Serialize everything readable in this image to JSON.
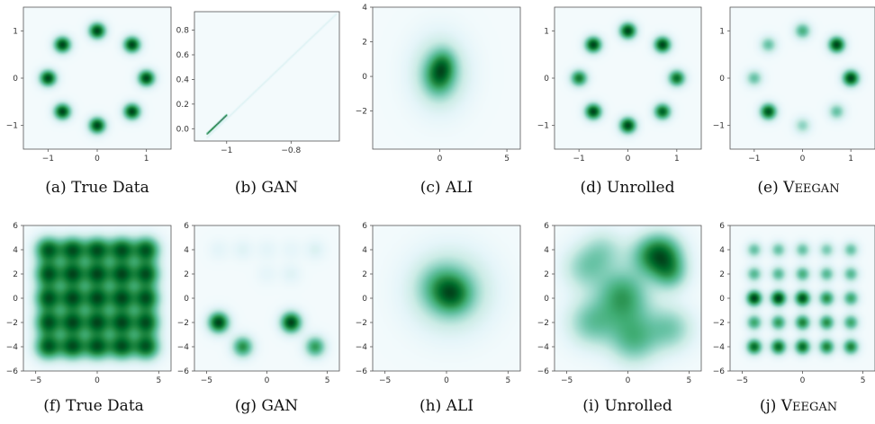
{
  "chart_data": [
    {
      "type": "heatmap",
      "caption_prefix": "(a)",
      "caption_name": "True Data",
      "small_caps": false,
      "colormap": "BuGn",
      "xlim": [
        -1.5,
        1.5
      ],
      "ylim": [
        -1.5,
        1.5
      ],
      "xticks": [
        -1,
        0,
        1
      ],
      "yticks": [
        -1,
        0,
        1
      ],
      "components": [
        {
          "x": 1.0,
          "y": 0.0,
          "s": 0.12,
          "w": 1
        },
        {
          "x": 0.707,
          "y": 0.707,
          "s": 0.12,
          "w": 1
        },
        {
          "x": 0.0,
          "y": 1.0,
          "s": 0.12,
          "w": 1
        },
        {
          "x": -0.707,
          "y": 0.707,
          "s": 0.12,
          "w": 1
        },
        {
          "x": -1.0,
          "y": 0.0,
          "s": 0.12,
          "w": 1
        },
        {
          "x": -0.707,
          "y": -0.707,
          "s": 0.12,
          "w": 1
        },
        {
          "x": 0.0,
          "y": -1.0,
          "s": 0.12,
          "w": 1
        },
        {
          "x": 0.707,
          "y": -0.707,
          "s": 0.12,
          "w": 1
        }
      ]
    },
    {
      "type": "heatmap",
      "caption_prefix": "(b)",
      "caption_name": "GAN",
      "small_caps": false,
      "colormap": "BuGn",
      "xlim": [
        -1.1,
        -0.65
      ],
      "ylim": [
        -0.1,
        0.95
      ],
      "xticks": [
        -1.0,
        -0.8
      ],
      "yticks": [
        0.0,
        0.2,
        0.4,
        0.6,
        0.8
      ],
      "segments": [
        {
          "x1": -1.06,
          "y1": -0.07,
          "x2": -0.66,
          "y2": 0.93,
          "w": 0.12
        },
        {
          "x1": -1.06,
          "y1": -0.04,
          "x2": -1.0,
          "y2": 0.11,
          "w": 0.9
        }
      ]
    },
    {
      "type": "heatmap",
      "caption_prefix": "(c)",
      "caption_name": "ALI",
      "small_caps": false,
      "colormap": "BuGn",
      "xlim": [
        -5,
        6
      ],
      "ylim": [
        -4.2,
        4
      ],
      "xticks": [
        0,
        5
      ],
      "yticks": [
        -2,
        0,
        2,
        4
      ],
      "components": [
        {
          "x": 0.0,
          "y": 0.2,
          "s": 1.4,
          "w": 0.55
        },
        {
          "x": -0.1,
          "y": 0.0,
          "s": 0.7,
          "w": 0.55
        },
        {
          "x": 0.3,
          "y": 0.7,
          "s": 0.6,
          "w": 0.4
        }
      ]
    },
    {
      "type": "heatmap",
      "caption_prefix": "(d)",
      "caption_name": "Unrolled",
      "small_caps": false,
      "colormap": "BuGn",
      "xlim": [
        -1.5,
        1.5
      ],
      "ylim": [
        -1.5,
        1.5
      ],
      "xticks": [
        -1,
        0,
        1
      ],
      "yticks": [
        -1,
        0,
        1
      ],
      "components": [
        {
          "x": 1.0,
          "y": 0.0,
          "s": 0.12,
          "w": 0.85
        },
        {
          "x": 0.707,
          "y": 0.707,
          "s": 0.12,
          "w": 1
        },
        {
          "x": 0.0,
          "y": 1.0,
          "s": 0.12,
          "w": 1
        },
        {
          "x": -0.707,
          "y": 0.707,
          "s": 0.12,
          "w": 1
        },
        {
          "x": -1.0,
          "y": 0.0,
          "s": 0.12,
          "w": 0.8
        },
        {
          "x": -0.707,
          "y": -0.707,
          "s": 0.12,
          "w": 1
        },
        {
          "x": 0.0,
          "y": -1.0,
          "s": 0.12,
          "w": 1
        },
        {
          "x": 0.707,
          "y": -0.707,
          "s": 0.12,
          "w": 0.9
        }
      ]
    },
    {
      "type": "heatmap",
      "caption_prefix": "(e)",
      "caption_name": "VEEGAN",
      "small_caps": true,
      "colormap": "BuGn",
      "xlim": [
        -1.5,
        1.5
      ],
      "ylim": [
        -1.5,
        1.5
      ],
      "xticks": [
        -1,
        0,
        1
      ],
      "yticks": [
        -1,
        0,
        1
      ],
      "components": [
        {
          "x": 1.0,
          "y": 0.0,
          "s": 0.12,
          "w": 1
        },
        {
          "x": 0.707,
          "y": 0.707,
          "s": 0.12,
          "w": 1
        },
        {
          "x": 0.0,
          "y": 1.0,
          "s": 0.12,
          "w": 0.55
        },
        {
          "x": -0.707,
          "y": 0.707,
          "s": 0.12,
          "w": 0.45
        },
        {
          "x": -1.0,
          "y": 0.0,
          "s": 0.12,
          "w": 0.45
        },
        {
          "x": -0.707,
          "y": -0.707,
          "s": 0.12,
          "w": 0.95
        },
        {
          "x": 0.0,
          "y": -1.0,
          "s": 0.12,
          "w": 0.35
        },
        {
          "x": 0.707,
          "y": -0.707,
          "s": 0.12,
          "w": 0.45
        }
      ]
    },
    {
      "type": "heatmap",
      "caption_prefix": "(f)",
      "caption_name": "True Data",
      "small_caps": false,
      "colormap": "BuGn",
      "xlim": [
        -6,
        6
      ],
      "ylim": [
        -6,
        6
      ],
      "xticks": [
        -5,
        0,
        5
      ],
      "yticks": [
        -6,
        -4,
        -2,
        0,
        2,
        4,
        6
      ],
      "grid_centers": [
        -4,
        -2,
        0,
        2,
        4
      ],
      "grid_sigma": 0.75,
      "grid_weights": [
        [
          1,
          1,
          1,
          1,
          1
        ],
        [
          1,
          1,
          1,
          1,
          1
        ],
        [
          1,
          1,
          1,
          1,
          1
        ],
        [
          1,
          1,
          1,
          1,
          1
        ],
        [
          1,
          1,
          1,
          1,
          1
        ]
      ]
    },
    {
      "type": "heatmap",
      "caption_prefix": "(g)",
      "caption_name": "GAN",
      "small_caps": false,
      "colormap": "BuGn",
      "xlim": [
        -6,
        6
      ],
      "ylim": [
        -6,
        6
      ],
      "xticks": [
        -5,
        0,
        5
      ],
      "yticks": [
        -6,
        -4,
        -2,
        0,
        2,
        4,
        6
      ],
      "components": [
        {
          "x": -4,
          "y": 4,
          "s": 0.6,
          "w": 0.08
        },
        {
          "x": -2,
          "y": 4,
          "s": 0.6,
          "w": 0.1
        },
        {
          "x": 0,
          "y": 4,
          "s": 0.6,
          "w": 0.08
        },
        {
          "x": 2,
          "y": 4,
          "s": 0.6,
          "w": 0.07
        },
        {
          "x": 4,
          "y": 4,
          "s": 0.6,
          "w": 0.12
        },
        {
          "x": 0,
          "y": 2,
          "s": 0.6,
          "w": 0.07
        },
        {
          "x": 2,
          "y": 2,
          "s": 0.6,
          "w": 0.1
        },
        {
          "x": -4,
          "y": -2,
          "s": 0.6,
          "w": 1
        },
        {
          "x": 2,
          "y": -2,
          "s": 0.6,
          "w": 1
        },
        {
          "x": -2,
          "y": -4,
          "s": 0.6,
          "w": 0.7
        },
        {
          "x": 4,
          "y": -4,
          "s": 0.6,
          "w": 0.65
        }
      ]
    },
    {
      "type": "heatmap",
      "caption_prefix": "(h)",
      "caption_name": "ALI",
      "small_caps": false,
      "colormap": "BuGn",
      "xlim": [
        -6,
        6
      ],
      "ylim": [
        -6,
        6
      ],
      "xticks": [
        -5,
        0,
        5
      ],
      "yticks": [
        -6,
        -4,
        -2,
        0,
        2,
        4,
        6
      ],
      "components": [
        {
          "x": 0.3,
          "y": 0.6,
          "s": 2.2,
          "w": 0.6
        },
        {
          "x": 0.5,
          "y": 0.3,
          "s": 1.0,
          "w": 0.55
        },
        {
          "x": -0.5,
          "y": 1.0,
          "s": 1.2,
          "w": 0.3
        }
      ]
    },
    {
      "type": "heatmap",
      "caption_prefix": "(i)",
      "caption_name": "Unrolled",
      "small_caps": false,
      "colormap": "BuGn",
      "xlim": [
        -6,
        6
      ],
      "ylim": [
        -6,
        6
      ],
      "xticks": [
        -5,
        0,
        5
      ],
      "yticks": [
        -6,
        -4,
        -2,
        0,
        2,
        4,
        6
      ],
      "components": [
        {
          "x": 2.8,
          "y": 3.6,
          "s": 1.2,
          "w": 0.95
        },
        {
          "x": 3.5,
          "y": 2.0,
          "s": 1.0,
          "w": 0.55
        },
        {
          "x": -0.5,
          "y": 0.5,
          "s": 1.4,
          "w": 0.6
        },
        {
          "x": -3.5,
          "y": 2.5,
          "s": 1.3,
          "w": 0.45
        },
        {
          "x": -3.0,
          "y": -2.0,
          "s": 1.4,
          "w": 0.55
        },
        {
          "x": 0.5,
          "y": -3.5,
          "s": 1.4,
          "w": 0.6
        },
        {
          "x": 3.5,
          "y": -2.5,
          "s": 1.3,
          "w": 0.5
        },
        {
          "x": 0.0,
          "y": -1.0,
          "s": 1.6,
          "w": 0.35
        },
        {
          "x": 1.5,
          "y": 3.5,
          "s": 1.2,
          "w": 0.4
        },
        {
          "x": -2.0,
          "y": 4.0,
          "s": 1.2,
          "w": 0.35
        }
      ]
    },
    {
      "type": "heatmap",
      "caption_prefix": "(j)",
      "caption_name": "VEEGAN",
      "small_caps": true,
      "colormap": "BuGn",
      "xlim": [
        -6,
        6
      ],
      "ylim": [
        -6,
        6
      ],
      "xticks": [
        -5,
        0,
        5
      ],
      "yticks": [
        -6,
        -4,
        -2,
        0,
        2,
        4,
        6
      ],
      "grid_centers": [
        -4,
        -2,
        0,
        2,
        4
      ],
      "grid_sigma": 0.45,
      "grid_weights": [
        [
          0.45,
          0.45,
          0.45,
          0.4,
          0.45
        ],
        [
          0.5,
          0.5,
          0.55,
          0.5,
          0.5
        ],
        [
          1.0,
          1.0,
          0.95,
          0.7,
          0.6
        ],
        [
          0.6,
          0.65,
          0.75,
          0.7,
          0.6
        ],
        [
          0.85,
          0.85,
          0.85,
          0.75,
          0.75
        ]
      ]
    }
  ]
}
